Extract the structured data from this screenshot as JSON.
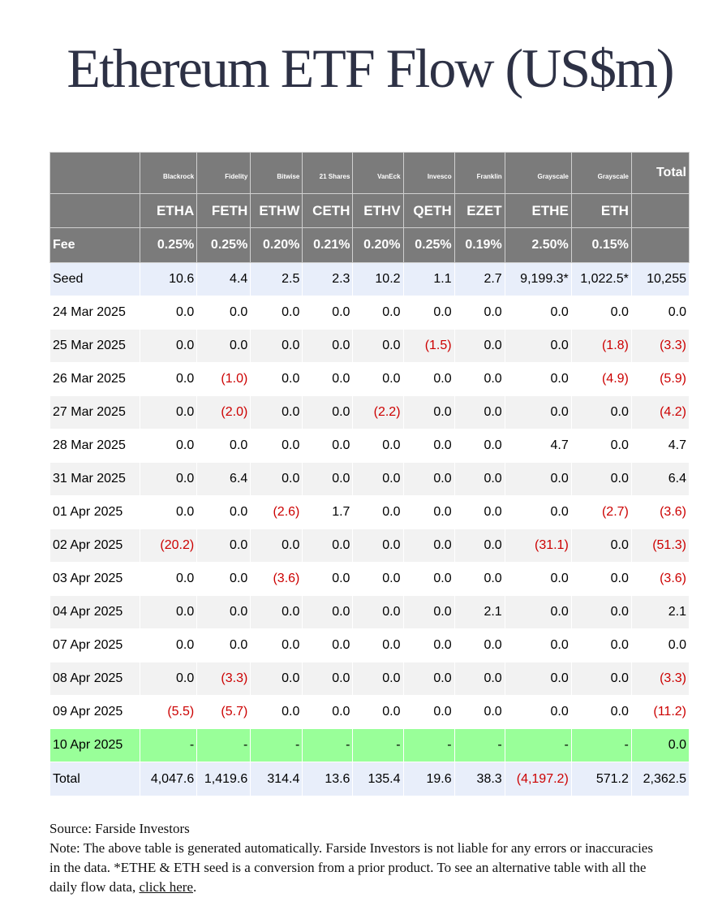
{
  "title": "Ethereum ETF Flow (US$m)",
  "issuers": [
    "Blackrock",
    "Fidelity",
    "Bitwise",
    "21 Shares",
    "VanEck",
    "Invesco",
    "Franklin",
    "Grayscale",
    "Grayscale"
  ],
  "total_header": "Total",
  "tickers": [
    "ETHA",
    "FETH",
    "ETHW",
    "CETH",
    "ETHV",
    "QETH",
    "EZET",
    "ETHE",
    "ETH"
  ],
  "fee_label": "Fee",
  "fees": [
    "0.25%",
    "0.25%",
    "0.20%",
    "0.21%",
    "0.20%",
    "0.25%",
    "0.19%",
    "2.50%",
    "0.15%"
  ],
  "rows": [
    {
      "label": "Seed",
      "cells": [
        "10.6",
        "4.4",
        "2.5",
        "2.3",
        "10.2",
        "1.1",
        "2.7",
        "9,199.3*",
        "1,022.5*",
        "10,255"
      ]
    },
    {
      "label": "24 Mar 2025",
      "cells": [
        "0.0",
        "0.0",
        "0.0",
        "0.0",
        "0.0",
        "0.0",
        "0.0",
        "0.0",
        "0.0",
        "0.0"
      ]
    },
    {
      "label": "25 Mar 2025",
      "cells": [
        "0.0",
        "0.0",
        "0.0",
        "0.0",
        "0.0",
        "(1.5)",
        "0.0",
        "0.0",
        "(1.8)",
        "(3.3)"
      ]
    },
    {
      "label": "26 Mar 2025",
      "cells": [
        "0.0",
        "(1.0)",
        "0.0",
        "0.0",
        "0.0",
        "0.0",
        "0.0",
        "0.0",
        "(4.9)",
        "(5.9)"
      ]
    },
    {
      "label": "27 Mar 2025",
      "cells": [
        "0.0",
        "(2.0)",
        "0.0",
        "0.0",
        "(2.2)",
        "0.0",
        "0.0",
        "0.0",
        "0.0",
        "(4.2)"
      ]
    },
    {
      "label": "28 Mar 2025",
      "cells": [
        "0.0",
        "0.0",
        "0.0",
        "0.0",
        "0.0",
        "0.0",
        "0.0",
        "4.7",
        "0.0",
        "4.7"
      ]
    },
    {
      "label": "31 Mar 2025",
      "cells": [
        "0.0",
        "6.4",
        "0.0",
        "0.0",
        "0.0",
        "0.0",
        "0.0",
        "0.0",
        "0.0",
        "6.4"
      ]
    },
    {
      "label": "01 Apr 2025",
      "cells": [
        "0.0",
        "0.0",
        "(2.6)",
        "1.7",
        "0.0",
        "0.0",
        "0.0",
        "0.0",
        "(2.7)",
        "(3.6)"
      ]
    },
    {
      "label": "02 Apr 2025",
      "cells": [
        "(20.2)",
        "0.0",
        "0.0",
        "0.0",
        "0.0",
        "0.0",
        "0.0",
        "(31.1)",
        "0.0",
        "(51.3)"
      ]
    },
    {
      "label": "03 Apr 2025",
      "cells": [
        "0.0",
        "0.0",
        "(3.6)",
        "0.0",
        "0.0",
        "0.0",
        "0.0",
        "0.0",
        "0.0",
        "(3.6)"
      ]
    },
    {
      "label": "04 Apr 2025",
      "cells": [
        "0.0",
        "0.0",
        "0.0",
        "0.0",
        "0.0",
        "0.0",
        "2.1",
        "0.0",
        "0.0",
        "2.1"
      ]
    },
    {
      "label": "07 Apr 2025",
      "cells": [
        "0.0",
        "0.0",
        "0.0",
        "0.0",
        "0.0",
        "0.0",
        "0.0",
        "0.0",
        "0.0",
        "0.0"
      ]
    },
    {
      "label": "08 Apr 2025",
      "cells": [
        "0.0",
        "(3.3)",
        "0.0",
        "0.0",
        "0.0",
        "0.0",
        "0.0",
        "0.0",
        "0.0",
        "(3.3)"
      ]
    },
    {
      "label": "09 Apr 2025",
      "cells": [
        "(5.5)",
        "(5.7)",
        "0.0",
        "0.0",
        "0.0",
        "0.0",
        "0.0",
        "0.0",
        "0.0",
        "(11.2)"
      ]
    },
    {
      "label": "10 Apr 2025",
      "cells": [
        "-",
        "-",
        "-",
        "-",
        "-",
        "-",
        "-",
        "-",
        "-",
        "0.0"
      ]
    },
    {
      "label": "Total",
      "cells": [
        "4,047.6",
        "1,419.6",
        "314.4",
        "13.6",
        "135.4",
        "19.6",
        "38.3",
        "(4,197.2)",
        "571.2",
        "2,362.5"
      ]
    }
  ],
  "footer": {
    "source": "Source: Farside Investors",
    "note": "Note: The above table is generated automatically. Farside Investors is not liable for any errors or inaccuracies in the data. *ETHE & ETH seed is a conversion from a prior product.  To see an alternative table with all the daily flow data, ",
    "link_text": "click here",
    "after_link": "."
  }
}
